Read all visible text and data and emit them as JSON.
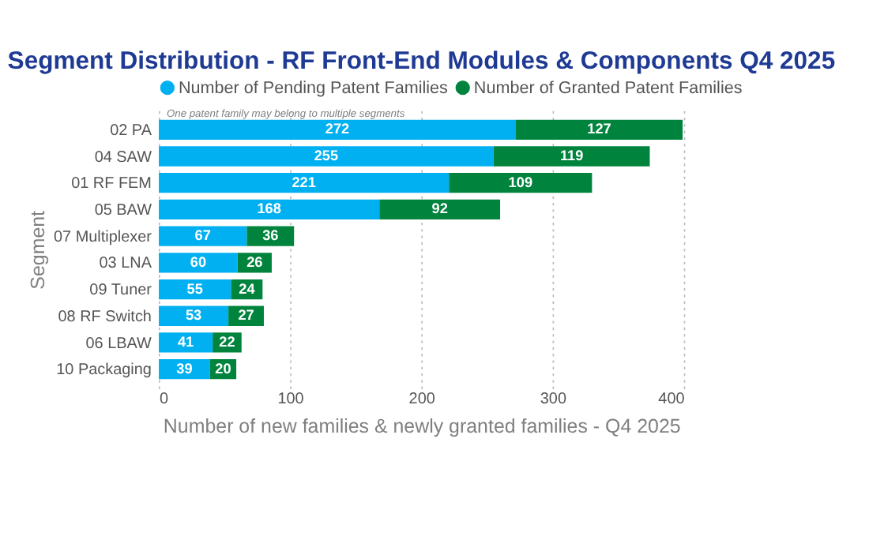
{
  "chart_data": {
    "type": "bar",
    "orientation": "horizontal",
    "stacked": true,
    "title": "Segment Distribution - RF Front-End Modules & Components Q4 2025",
    "xlabel": "Number of new families & newly granted families - Q4 2025",
    "ylabel": "Segment",
    "categories": [
      "02 PA",
      "04 SAW",
      "01 RF FEM",
      "05 BAW",
      "07 Multiplexer",
      "03 LNA",
      "09 Tuner",
      "08 RF Switch",
      "06 LBAW",
      "10 Packaging"
    ],
    "series": [
      {
        "name": "Number of Pending Patent Families",
        "color": "#00b0f0",
        "values": [
          272,
          255,
          221,
          168,
          67,
          60,
          55,
          53,
          41,
          39
        ]
      },
      {
        "name": "Number of Granted Patent Families",
        "color": "#00843d",
        "values": [
          127,
          119,
          109,
          92,
          36,
          26,
          24,
          27,
          22,
          20
        ]
      }
    ],
    "xlim": [
      0,
      400
    ],
    "xticks": [
      0,
      100,
      200,
      300,
      400
    ],
    "grid": "x",
    "legend": "top",
    "data_labels": true,
    "annotations": [
      "One patent family may belong to multiple segments"
    ]
  }
}
